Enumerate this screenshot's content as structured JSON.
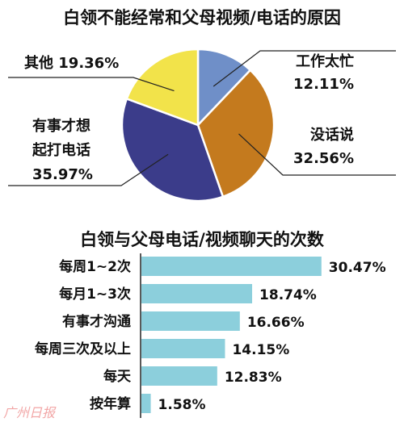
{
  "charts": {
    "pie": {
      "title": "白领不能经常和父母视频/电话的原因"
    },
    "bar": {
      "title": "白领与父母电话/视频聊天的次数"
    }
  },
  "watermark": "广州日报",
  "chart_data": [
    {
      "type": "pie",
      "title": "白领不能经常和父母视频/电话的原因",
      "slices": [
        {
          "label": "工作太忙",
          "value": 12.11,
          "value_label": "12.11%",
          "color": "#6f8fc8"
        },
        {
          "label": "没话说",
          "value": 32.56,
          "value_label": "32.56%",
          "color": "#c47a1e"
        },
        {
          "label": "有事才想起打电话",
          "value": 35.97,
          "value_label": "35.97%",
          "color": "#3b3c8a"
        },
        {
          "label": "其他",
          "value": 19.36,
          "value_label": "19.36%",
          "color": "#f2e34a"
        }
      ]
    },
    {
      "type": "bar",
      "orientation": "horizontal",
      "title": "白领与父母电话/视频聊天的次数",
      "categories": [
        "每周1~2次",
        "每月1~3次",
        "有事才沟通",
        "每周三次及以上",
        "每天",
        "按年算"
      ],
      "values": [
        30.47,
        18.74,
        16.66,
        14.15,
        12.83,
        1.58
      ],
      "value_labels": [
        "30.47%",
        "18.74%",
        "16.66%",
        "14.15%",
        "12.83%",
        "1.58%"
      ],
      "bar_color": "#8ccfdc",
      "xlim": [
        0,
        32
      ]
    }
  ]
}
